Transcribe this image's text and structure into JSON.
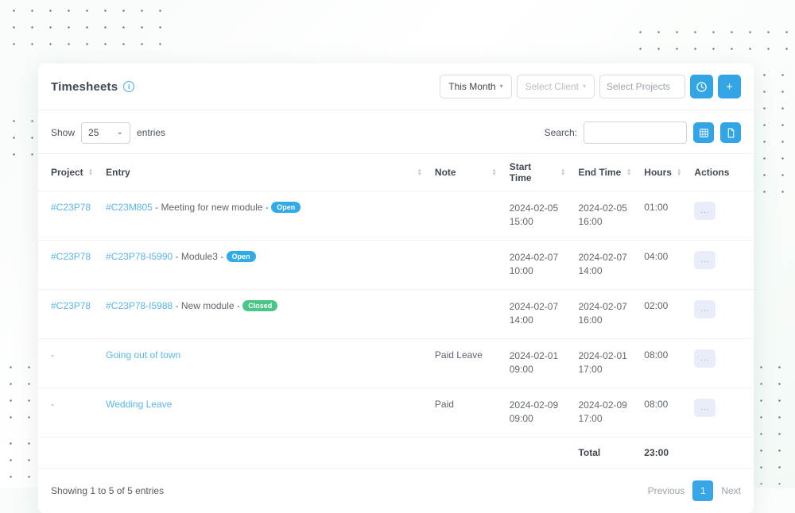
{
  "header": {
    "title": "Timesheets",
    "period_filter": "This Month",
    "client_filter": "Select Client",
    "projects_placeholder": "Select Projects"
  },
  "toolbar": {
    "show_label": "Show",
    "page_length": "25",
    "entries_label": "entries",
    "search_label": "Search:",
    "search_value": ""
  },
  "table": {
    "columns": [
      "Project",
      "Entry",
      "Note",
      "Start Time",
      "End Time",
      "Hours",
      "Actions"
    ],
    "action_label": "...",
    "rows": [
      {
        "project": "#C23P78",
        "entry_link": "#C23M805",
        "entry_text": "- Meeting for new module -",
        "badge": "Open",
        "badge_color": "#2face8",
        "note": "",
        "start": "2024-02-05 15:00",
        "end": "2024-02-05 16:00",
        "hours": "01:00"
      },
      {
        "project": "#C23P78",
        "entry_link": "#C23P78-I5990",
        "entry_text": "- Module3 -",
        "badge": "Open",
        "badge_color": "#2face8",
        "note": "",
        "start": "2024-02-07 10:00",
        "end": "2024-02-07 14:00",
        "hours": "04:00"
      },
      {
        "project": "#C23P78",
        "entry_link": "#C23P78-I5988",
        "entry_text": "- New module -",
        "badge": "Closed",
        "badge_color": "#4bc689",
        "note": "",
        "start": "2024-02-07 14:00",
        "end": "2024-02-07 16:00",
        "hours": "02:00"
      },
      {
        "project": "-",
        "entry_link": "Going out of town",
        "entry_text": "",
        "badge": "",
        "badge_color": "",
        "note": "Paid Leave",
        "start": "2024-02-01 09:00",
        "end": "2024-02-01 17:00",
        "hours": "08:00"
      },
      {
        "project": "-",
        "entry_link": "Wedding Leave",
        "entry_text": "",
        "badge": "",
        "badge_color": "",
        "note": "Paid",
        "start": "2024-02-09 09:00",
        "end": "2024-02-09 17:00",
        "hours": "08:00"
      }
    ],
    "total_label": "Total",
    "total_hours": "23:00"
  },
  "footer": {
    "summary": "Showing 1 to 5 of 5 entries",
    "previous": "Previous",
    "page": "1",
    "next": "Next"
  },
  "icons": {
    "info": "i",
    "caret_down": "▾",
    "chevron_down": "⌄",
    "plus": "+",
    "sort_up": "▲",
    "sort_down": "▼"
  },
  "colors": {
    "accent_blue": "#33a5e5",
    "badge_open": "#2face8",
    "badge_closed": "#4bc689",
    "link_blue": "#58b7ec"
  }
}
